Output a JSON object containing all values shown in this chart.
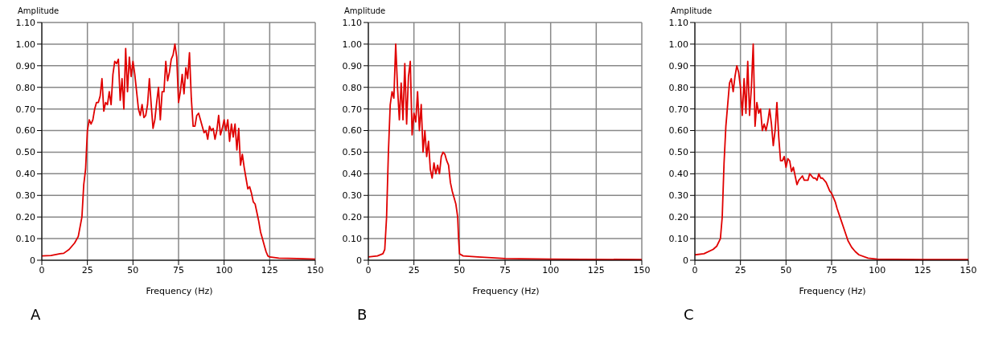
{
  "chart_data": [
    {
      "type": "line",
      "xlabel": "Frequency (Hz)",
      "ylabel": "Amplitude",
      "annotations": [
        "A"
      ],
      "xlim": [
        0,
        150
      ],
      "xticks": [
        0,
        25,
        50,
        75,
        100,
        125,
        150
      ],
      "ylim": [
        0,
        1.1
      ],
      "yticks": [
        {
          "value": 0,
          "label": "0"
        },
        {
          "value": 0.1,
          "label": "0.10"
        },
        {
          "value": 0.2,
          "label": "0.20"
        },
        {
          "value": 0.3,
          "label": "0.30"
        },
        {
          "value": 0.4,
          "label": "0.40"
        },
        {
          "value": 0.5,
          "label": "0.50"
        },
        {
          "value": 0.6,
          "label": "0.60"
        },
        {
          "value": 0.7,
          "label": "0.70"
        },
        {
          "value": 0.8,
          "label": "0.80"
        },
        {
          "value": 0.9,
          "label": "0.90"
        },
        {
          "value": 1,
          "label": "1.00"
        },
        {
          "value": 1.1,
          "label": "1.10"
        }
      ],
      "grid": true,
      "series": [
        {
          "color": "#e00000",
          "x": [
            0,
            5,
            10,
            12,
            15,
            18,
            20,
            22,
            23,
            24,
            25,
            26,
            27,
            28,
            29,
            30,
            31,
            32,
            33,
            34,
            35,
            36,
            37,
            38,
            39,
            40,
            41,
            42,
            43,
            44,
            45,
            46,
            47,
            48,
            49,
            50,
            51,
            52,
            53,
            54,
            55,
            56,
            57,
            58,
            59,
            60,
            61,
            62,
            63,
            64,
            65,
            66,
            67,
            68,
            69,
            70,
            71,
            72,
            73,
            74,
            75,
            76,
            77,
            78,
            79,
            80,
            81,
            82,
            83,
            84,
            85,
            86,
            87,
            88,
            89,
            90,
            91,
            92,
            93,
            94,
            95,
            96,
            97,
            98,
            99,
            100,
            101,
            102,
            103,
            104,
            105,
            106,
            107,
            108,
            109,
            110,
            111,
            112,
            113,
            114,
            115,
            116,
            117,
            118,
            119,
            120,
            121,
            122,
            123,
            124,
            125,
            130,
            140,
            150
          ],
          "values": [
            0.02,
            0.022,
            0.03,
            0.032,
            0.05,
            0.08,
            0.11,
            0.2,
            0.35,
            0.42,
            0.6,
            0.65,
            0.63,
            0.65,
            0.7,
            0.73,
            0.73,
            0.76,
            0.84,
            0.69,
            0.73,
            0.72,
            0.78,
            0.72,
            0.86,
            0.92,
            0.91,
            0.93,
            0.74,
            0.84,
            0.7,
            0.98,
            0.78,
            0.94,
            0.85,
            0.92,
            0.86,
            0.78,
            0.7,
            0.67,
            0.72,
            0.66,
            0.67,
            0.72,
            0.84,
            0.72,
            0.61,
            0.65,
            0.73,
            0.8,
            0.65,
            0.78,
            0.78,
            0.92,
            0.83,
            0.87,
            0.93,
            0.95,
            1.0,
            0.94,
            0.73,
            0.78,
            0.86,
            0.77,
            0.89,
            0.84,
            0.96,
            0.75,
            0.62,
            0.62,
            0.67,
            0.68,
            0.65,
            0.62,
            0.59,
            0.6,
            0.56,
            0.62,
            0.6,
            0.61,
            0.56,
            0.6,
            0.67,
            0.58,
            0.61,
            0.65,
            0.6,
            0.65,
            0.55,
            0.63,
            0.57,
            0.63,
            0.51,
            0.61,
            0.44,
            0.49,
            0.43,
            0.38,
            0.33,
            0.34,
            0.31,
            0.27,
            0.26,
            0.22,
            0.18,
            0.13,
            0.1,
            0.07,
            0.04,
            0.02,
            0.015,
            0.01,
            0.008,
            0.005
          ]
        }
      ]
    },
    {
      "type": "line",
      "xlabel": "Frequency (Hz)",
      "ylabel": "Amplitude",
      "annotations": [
        "B"
      ],
      "xlim": [
        0,
        150
      ],
      "xticks": [
        0,
        25,
        50,
        75,
        100,
        125,
        150
      ],
      "ylim": [
        0,
        1.1
      ],
      "yticks": [
        {
          "value": 0,
          "label": "0"
        },
        {
          "value": 0.1,
          "label": "0.10"
        },
        {
          "value": 0.2,
          "label": "0.20"
        },
        {
          "value": 0.3,
          "label": "0.30"
        },
        {
          "value": 0.4,
          "label": "0.40"
        },
        {
          "value": 0.5,
          "label": "0.50"
        },
        {
          "value": 0.6,
          "label": "0.60"
        },
        {
          "value": 0.7,
          "label": "0.70"
        },
        {
          "value": 0.8,
          "label": "0.80"
        },
        {
          "value": 0.9,
          "label": "0.90"
        },
        {
          "value": 1,
          "label": "1.00"
        },
        {
          "value": 1.1,
          "label": "1.10"
        }
      ],
      "grid": true,
      "series": [
        {
          "color": "#e00000",
          "x": [
            0,
            5,
            8,
            9,
            10,
            11,
            12,
            13,
            14,
            15,
            16,
            17,
            18,
            19,
            20,
            21,
            22,
            23,
            24,
            25,
            26,
            27,
            28,
            29,
            30,
            31,
            32,
            33,
            34,
            35,
            36,
            37,
            38,
            39,
            40,
            41,
            42,
            43,
            44,
            45,
            46,
            47,
            48,
            49,
            49.5,
            50,
            52,
            60,
            75,
            100,
            150
          ],
          "values": [
            0.015,
            0.02,
            0.03,
            0.05,
            0.2,
            0.5,
            0.72,
            0.78,
            0.75,
            1.0,
            0.8,
            0.65,
            0.82,
            0.65,
            0.91,
            0.63,
            0.85,
            0.92,
            0.58,
            0.68,
            0.64,
            0.78,
            0.6,
            0.72,
            0.5,
            0.6,
            0.48,
            0.55,
            0.42,
            0.38,
            0.45,
            0.4,
            0.44,
            0.4,
            0.48,
            0.5,
            0.49,
            0.46,
            0.44,
            0.36,
            0.32,
            0.29,
            0.26,
            0.2,
            0.1,
            0.03,
            0.02,
            0.015,
            0.008,
            0.005,
            0.003
          ]
        }
      ]
    },
    {
      "type": "line",
      "xlabel": "Frequency (Hz)",
      "ylabel": "Amplitude",
      "annotations": [
        "C"
      ],
      "xlim": [
        0,
        150
      ],
      "xticks": [
        0,
        25,
        50,
        75,
        100,
        125,
        150
      ],
      "ylim": [
        0,
        1.1
      ],
      "yticks": [
        {
          "value": 0,
          "label": "0"
        },
        {
          "value": 0.1,
          "label": "0.10"
        },
        {
          "value": 0.2,
          "label": "0.20"
        },
        {
          "value": 0.3,
          "label": "0.30"
        },
        {
          "value": 0.4,
          "label": "0.40"
        },
        {
          "value": 0.5,
          "label": "0.50"
        },
        {
          "value": 0.6,
          "label": "0.60"
        },
        {
          "value": 0.7,
          "label": "0.70"
        },
        {
          "value": 0.8,
          "label": "0.80"
        },
        {
          "value": 0.9,
          "label": "0.90"
        },
        {
          "value": 1,
          "label": "1.00"
        },
        {
          "value": 1.1,
          "label": "1.10"
        }
      ],
      "grid": true,
      "series": [
        {
          "color": "#e00000",
          "x": [
            0,
            5,
            10,
            12,
            14,
            15,
            16,
            17,
            18,
            19,
            20,
            21,
            22,
            23,
            24,
            25,
            26,
            27,
            28,
            29,
            30,
            31,
            32,
            33,
            34,
            35,
            36,
            37,
            38,
            39,
            40,
            41,
            42,
            43,
            44,
            45,
            46,
            47,
            48,
            49,
            50,
            51,
            52,
            53,
            54,
            55,
            56,
            57,
            58,
            59,
            60,
            62,
            63,
            65,
            66,
            67,
            68,
            69,
            70,
            72,
            74,
            75,
            77,
            78,
            80,
            82,
            84,
            86,
            88,
            90,
            95,
            100,
            110,
            125,
            150
          ],
          "values": [
            0.025,
            0.03,
            0.05,
            0.065,
            0.1,
            0.2,
            0.45,
            0.62,
            0.72,
            0.82,
            0.84,
            0.78,
            0.85,
            0.9,
            0.87,
            0.8,
            0.67,
            0.84,
            0.68,
            0.92,
            0.67,
            0.8,
            1.0,
            0.62,
            0.73,
            0.68,
            0.7,
            0.6,
            0.63,
            0.6,
            0.64,
            0.7,
            0.63,
            0.53,
            0.6,
            0.73,
            0.57,
            0.46,
            0.46,
            0.48,
            0.43,
            0.47,
            0.46,
            0.41,
            0.43,
            0.39,
            0.35,
            0.37,
            0.38,
            0.39,
            0.37,
            0.37,
            0.4,
            0.38,
            0.38,
            0.37,
            0.4,
            0.38,
            0.38,
            0.36,
            0.32,
            0.31,
            0.27,
            0.24,
            0.19,
            0.14,
            0.09,
            0.06,
            0.04,
            0.025,
            0.01,
            0.005,
            0.004,
            0.003,
            0.003
          ]
        }
      ]
    }
  ]
}
